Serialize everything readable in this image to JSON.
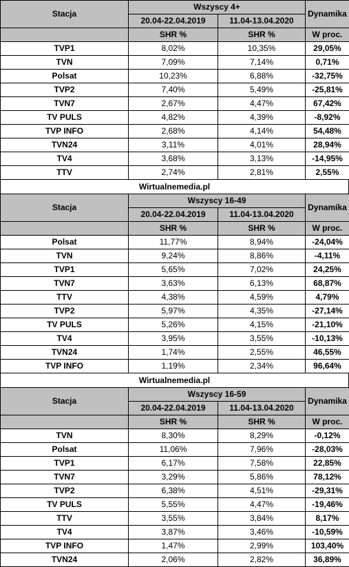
{
  "columns": {
    "station": "Stacja",
    "dynamics": "Dynamika",
    "period1": "20.04-22.04.2019",
    "period2": "11.04-13.04.2020",
    "shr": "SHR %",
    "wproc": "W proc."
  },
  "source": "Wirtualnemedia.pl",
  "groups": [
    {
      "title": "Wszyscy 4+",
      "rows": [
        {
          "station": "TVP1",
          "v2019": "8,02%",
          "v2020": "10,35%",
          "dyn": "29,05%"
        },
        {
          "station": "TVN",
          "v2019": "7,09%",
          "v2020": "7,14%",
          "dyn": "0,71%"
        },
        {
          "station": "Polsat",
          "v2019": "10,23%",
          "v2020": "6,88%",
          "dyn": "-32,75%"
        },
        {
          "station": "TVP2",
          "v2019": "7,40%",
          "v2020": "5,49%",
          "dyn": "-25,81%"
        },
        {
          "station": "TVN7",
          "v2019": "2,67%",
          "v2020": "4,47%",
          "dyn": "67,42%"
        },
        {
          "station": "TV PULS",
          "v2019": "4,82%",
          "v2020": "4,39%",
          "dyn": "-8,92%"
        },
        {
          "station": "TVP INFO",
          "v2019": "2,68%",
          "v2020": "4,14%",
          "dyn": "54,48%"
        },
        {
          "station": "TVN24",
          "v2019": "3,11%",
          "v2020": "4,01%",
          "dyn": "28,94%"
        },
        {
          "station": "TV4",
          "v2019": "3,68%",
          "v2020": "3,13%",
          "dyn": "-14,95%"
        },
        {
          "station": "TTV",
          "v2019": "2,74%",
          "v2020": "2,81%",
          "dyn": "2,55%"
        }
      ]
    },
    {
      "title": "Wszyscy 16-49",
      "rows": [
        {
          "station": "Polsat",
          "v2019": "11,77%",
          "v2020": "8,94%",
          "dyn": "-24,04%"
        },
        {
          "station": "TVN",
          "v2019": "9,24%",
          "v2020": "8,86%",
          "dyn": "-4,11%"
        },
        {
          "station": "TVP1",
          "v2019": "5,65%",
          "v2020": "7,02%",
          "dyn": "24,25%"
        },
        {
          "station": "TVN7",
          "v2019": "3,63%",
          "v2020": "6,13%",
          "dyn": "68,87%"
        },
        {
          "station": "TTV",
          "v2019": "4,38%",
          "v2020": "4,59%",
          "dyn": "4,79%"
        },
        {
          "station": "TVP2",
          "v2019": "5,97%",
          "v2020": "4,35%",
          "dyn": "-27,14%"
        },
        {
          "station": "TV PULS",
          "v2019": "5,26%",
          "v2020": "4,15%",
          "dyn": "-21,10%"
        },
        {
          "station": "TV4",
          "v2019": "3,95%",
          "v2020": "3,55%",
          "dyn": "-10,13%"
        },
        {
          "station": "TVN24",
          "v2019": "1,74%",
          "v2020": "2,55%",
          "dyn": "46,55%"
        },
        {
          "station": "TVP INFO",
          "v2019": "1,19%",
          "v2020": "2,34%",
          "dyn": "96,64%"
        }
      ]
    },
    {
      "title": "Wszyscy 16-59",
      "rows": [
        {
          "station": "TVN",
          "v2019": "8,30%",
          "v2020": "8,29%",
          "dyn": "-0,12%"
        },
        {
          "station": "Polsat",
          "v2019": "11,06%",
          "v2020": "7,96%",
          "dyn": "-28,03%"
        },
        {
          "station": "TVP1",
          "v2019": "6,17%",
          "v2020": "7,58%",
          "dyn": "22,85%"
        },
        {
          "station": "TVN7",
          "v2019": "3,29%",
          "v2020": "5,86%",
          "dyn": "78,12%"
        },
        {
          "station": "TVP2",
          "v2019": "6,38%",
          "v2020": "4,51%",
          "dyn": "-29,31%"
        },
        {
          "station": "TV PULS",
          "v2019": "5,55%",
          "v2020": "4,47%",
          "dyn": "-19,46%"
        },
        {
          "station": "TTV",
          "v2019": "3,55%",
          "v2020": "3,84%",
          "dyn": "8,17%"
        },
        {
          "station": "TV4",
          "v2019": "3,87%",
          "v2020": "3,46%",
          "dyn": "-10,59%"
        },
        {
          "station": "TVP INFO",
          "v2019": "1,47%",
          "v2020": "2,99%",
          "dyn": "103,40%"
        },
        {
          "station": "TVN24",
          "v2019": "2,06%",
          "v2020": "2,82%",
          "dyn": "36,89%"
        }
      ]
    }
  ]
}
